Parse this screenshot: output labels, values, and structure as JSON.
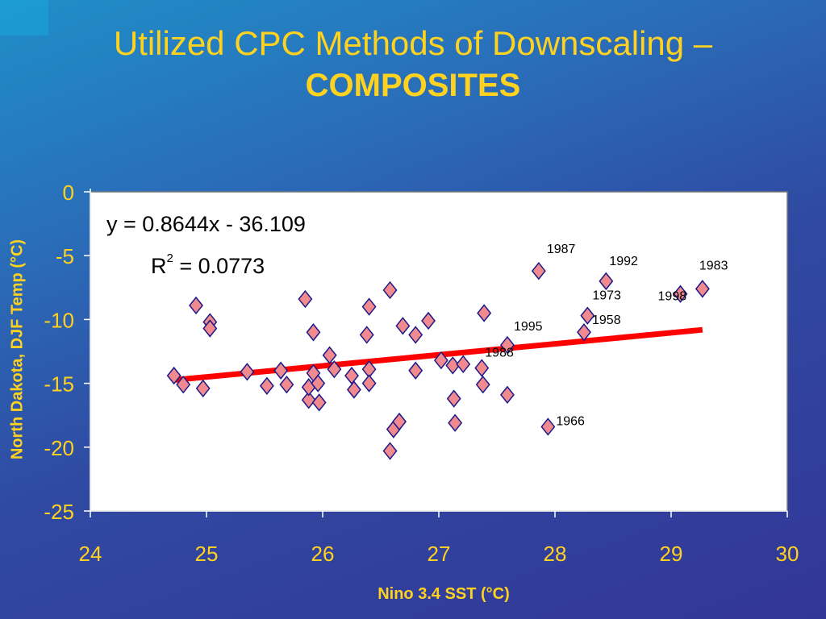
{
  "title": {
    "line1": "Utilized CPC Methods of Downscaling –",
    "line2": "COMPOSITES"
  },
  "chart_data": {
    "type": "scatter",
    "xlabel": "Nino 3.4 SST (°C)",
    "ylabel": "North Dakota, DJF Temp (°C)",
    "xlim": [
      24,
      30
    ],
    "ylim": [
      -25,
      0
    ],
    "x_ticks": [
      "24",
      "25",
      "26",
      "27",
      "28",
      "29",
      "30"
    ],
    "y_ticks": [
      "0",
      "-5",
      "-10",
      "-15",
      "-20",
      "-25"
    ],
    "trendline": {
      "equation": "y = 0.8644x - 36.109",
      "r2_label": "R",
      "r2_sup": "2",
      "r2_value": " = 0.0773",
      "slope": 0.8644,
      "intercept": -36.109,
      "x_range": [
        24.72,
        29.27
      ],
      "color": "#ff0000"
    },
    "marker_fill": "#f08a8f",
    "marker_stroke": "#1a1a8a",
    "points": [
      {
        "x": 24.72,
        "y": -14.4
      },
      {
        "x": 24.8,
        "y": -15.1
      },
      {
        "x": 24.91,
        "y": -8.9
      },
      {
        "x": 24.97,
        "y": -15.4
      },
      {
        "x": 25.03,
        "y": -10.2
      },
      {
        "x": 25.03,
        "y": -10.7
      },
      {
        "x": 25.35,
        "y": -14.1
      },
      {
        "x": 25.52,
        "y": -15.2
      },
      {
        "x": 25.64,
        "y": -14.0
      },
      {
        "x": 25.69,
        "y": -15.1
      },
      {
        "x": 25.85,
        "y": -8.4
      },
      {
        "x": 25.88,
        "y": -16.3
      },
      {
        "x": 25.88,
        "y": -15.3
      },
      {
        "x": 25.92,
        "y": -11.0
      },
      {
        "x": 25.92,
        "y": -14.2
      },
      {
        "x": 25.96,
        "y": -15.0
      },
      {
        "x": 25.97,
        "y": -16.5
      },
      {
        "x": 26.06,
        "y": -12.8
      },
      {
        "x": 26.1,
        "y": -13.9
      },
      {
        "x": 26.25,
        "y": -14.4
      },
      {
        "x": 26.27,
        "y": -15.5
      },
      {
        "x": 26.38,
        "y": -11.2
      },
      {
        "x": 26.4,
        "y": -9.0
      },
      {
        "x": 26.4,
        "y": -13.9
      },
      {
        "x": 26.4,
        "y": -15.0
      },
      {
        "x": 26.58,
        "y": -20.3
      },
      {
        "x": 26.58,
        "y": -7.7
      },
      {
        "x": 26.61,
        "y": -18.6
      },
      {
        "x": 26.66,
        "y": -18.0
      },
      {
        "x": 26.69,
        "y": -10.5
      },
      {
        "x": 26.8,
        "y": -11.2
      },
      {
        "x": 26.8,
        "y": -14.0
      },
      {
        "x": 26.91,
        "y": -10.1
      },
      {
        "x": 27.02,
        "y": -13.2
      },
      {
        "x": 27.12,
        "y": -13.6
      },
      {
        "x": 27.13,
        "y": -16.2
      },
      {
        "x": 27.14,
        "y": -18.1
      },
      {
        "x": 27.21,
        "y": -13.5
      },
      {
        "x": 27.37,
        "y": -13.8
      },
      {
        "x": 27.38,
        "y": -15.1
      },
      {
        "x": 27.39,
        "y": -9.5
      },
      {
        "x": 27.59,
        "y": -12.0
      },
      {
        "x": 27.59,
        "y": -15.9
      },
      {
        "x": 27.86,
        "y": -6.2
      },
      {
        "x": 27.94,
        "y": -18.4
      },
      {
        "x": 28.25,
        "y": -11.0
      },
      {
        "x": 28.28,
        "y": -9.7
      },
      {
        "x": 28.44,
        "y": -7.0
      },
      {
        "x": 29.08,
        "y": -8.0
      },
      {
        "x": 29.27,
        "y": -7.6
      }
    ],
    "labels": [
      {
        "text": "1987",
        "x": 27.86,
        "y": -6.2,
        "dx": 10,
        "dy": -22
      },
      {
        "text": "1992",
        "x": 28.44,
        "y": -7.0,
        "dx": 4,
        "dy": -20
      },
      {
        "text": "1983",
        "x": 29.27,
        "y": -7.6,
        "dx": -4,
        "dy": -24
      },
      {
        "text": "1973",
        "x": 28.28,
        "y": -9.7,
        "dx": 6,
        "dy": -20
      },
      {
        "text": "1998",
        "x": 29.08,
        "y": -8.0,
        "dx": -28,
        "dy": 8
      },
      {
        "text": "1958",
        "x": 28.25,
        "y": -11.0,
        "dx": 10,
        "dy": -10
      },
      {
        "text": "1995",
        "x": 27.59,
        "y": -12.0,
        "dx": 8,
        "dy": -18
      },
      {
        "text": "1988",
        "x": 27.37,
        "y": -13.8,
        "dx": 4,
        "dy": -14
      },
      {
        "text": "1966",
        "x": 27.94,
        "y": -18.4,
        "dx": 10,
        "dy": -2
      }
    ]
  }
}
